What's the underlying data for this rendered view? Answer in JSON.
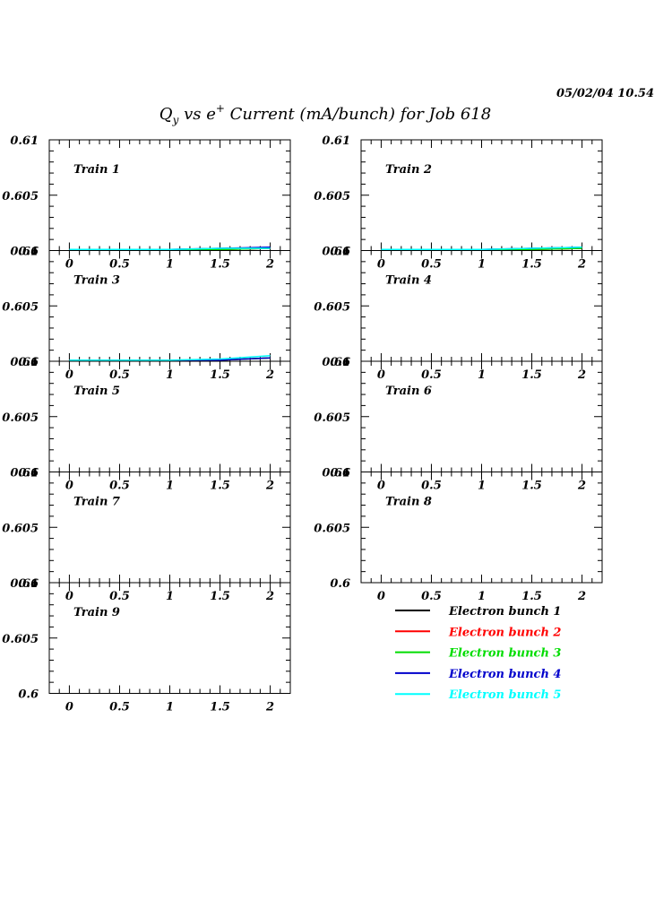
{
  "header": {
    "timestamp": "05/02/04   10.54",
    "title": {
      "q": "Q",
      "q_sub": "y",
      "vs": " vs e",
      "e_sup": "+",
      "rest": " Current (mA/bunch) for Job 618"
    }
  },
  "chart_data": {
    "type": "line",
    "x_ticks": [
      "0",
      "0.5",
      "1",
      "1.5",
      "2"
    ],
    "y_ticks": [
      "0.6",
      "0.605",
      "0.61"
    ],
    "xlim": [
      -0.2,
      2.2
    ],
    "ylim": [
      0.6,
      0.61
    ],
    "grid": false,
    "legend_position": "bottom-right",
    "series_defs": [
      {
        "name": "Electron bunch 1",
        "color": "#000000"
      },
      {
        "name": "Electron bunch 2",
        "color": "#ff0000"
      },
      {
        "name": "Electron bunch 3",
        "color": "#00dd00"
      },
      {
        "name": "Electron bunch 4",
        "color": "#0000cc"
      },
      {
        "name": "Electron bunch 5",
        "color": "#00ffff"
      }
    ],
    "panels": [
      {
        "label": "Train 1",
        "series": [
          {
            "x": [
              0,
              0.5,
              1,
              1.5,
              2
            ],
            "y": [
              0.6001,
              0.6001,
              0.6001,
              0.6001,
              0.6002
            ]
          },
          {
            "x": [
              0,
              0.5,
              1,
              1.5,
              2
            ],
            "y": [
              0.6001,
              0.6001,
              0.6001,
              0.6001,
              0.6002
            ]
          },
          {
            "x": [
              0,
              0.5,
              1,
              1.5,
              2
            ],
            "y": [
              0.6001,
              0.6001,
              0.6001,
              0.6001,
              0.6002
            ]
          },
          {
            "x": [
              0,
              0.5,
              1,
              1.5,
              2
            ],
            "y": [
              0.6001,
              0.6001,
              0.6001,
              0.6002,
              0.6003
            ]
          },
          {
            "x": [
              0,
              0.5,
              1,
              1.5,
              2
            ],
            "y": [
              0.6001,
              0.6001,
              0.6001,
              0.6002,
              0.6002
            ]
          }
        ]
      },
      {
        "label": "Train 2",
        "series": [
          {
            "x": [
              0,
              0.5,
              1,
              1.5,
              2
            ],
            "y": [
              0.6001,
              0.6001,
              0.6001,
              0.6001,
              0.6002
            ]
          },
          {
            "x": [
              0,
              0.5,
              1,
              1.5,
              2
            ],
            "y": [
              0.6001,
              0.6001,
              0.6001,
              0.6001,
              0.6002
            ]
          },
          {
            "x": [
              0,
              0.5,
              1,
              1.5,
              2
            ],
            "y": [
              0.6001,
              0.6001,
              0.6001,
              0.6001,
              0.6002
            ]
          },
          {
            "x": [
              0,
              0.5,
              1,
              1.5,
              2
            ],
            "y": [
              0.6001,
              0.6001,
              0.6001,
              0.6002,
              0.6003
            ]
          },
          {
            "x": [
              0,
              0.5,
              1,
              1.5,
              2
            ],
            "y": [
              0.6001,
              0.6001,
              0.6001,
              0.6002,
              0.6003
            ]
          }
        ]
      },
      {
        "label": "Train 3",
        "series": [
          {
            "x": [
              0,
              0.5,
              1,
              1.5,
              2
            ],
            "y": [
              0.6001,
              0.6001,
              0.6001,
              0.6001,
              0.6003
            ]
          },
          {
            "x": [
              0,
              0.5,
              1,
              1.5,
              2
            ],
            "y": [
              0.6001,
              0.6001,
              0.6001,
              0.6001,
              0.6003
            ]
          },
          {
            "x": [
              0,
              0.5,
              1,
              1.5,
              2
            ],
            "y": [
              0.6001,
              0.6001,
              0.6001,
              0.6001,
              0.6003
            ]
          },
          {
            "x": [
              0,
              0.5,
              1,
              1.5,
              2
            ],
            "y": [
              0.6001,
              0.6001,
              0.6001,
              0.6001,
              0.6003
            ]
          },
          {
            "x": [
              0,
              0.5,
              1,
              1.5,
              2
            ],
            "y": [
              0.6001,
              0.6001,
              0.6001,
              0.6002,
              0.6005
            ]
          }
        ]
      },
      {
        "label": "Train 4",
        "series": []
      },
      {
        "label": "Train 5",
        "series": []
      },
      {
        "label": "Train 6",
        "series": []
      },
      {
        "label": "Train 7",
        "series": []
      },
      {
        "label": "Train 8",
        "series": []
      },
      {
        "label": "Train 9",
        "series": []
      }
    ]
  }
}
